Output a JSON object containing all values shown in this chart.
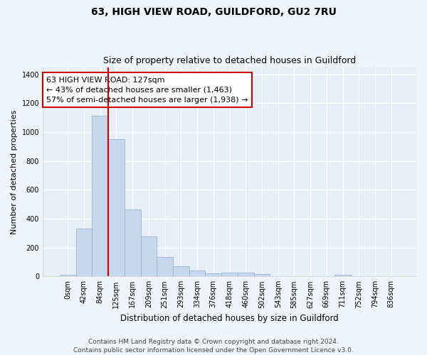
{
  "title": "63, HIGH VIEW ROAD, GUILDFORD, GU2 7RU",
  "subtitle": "Size of property relative to detached houses in Guildford",
  "xlabel": "Distribution of detached houses by size in Guildford",
  "ylabel": "Number of detached properties",
  "bar_color": "#c8d8ec",
  "bar_edge_color": "#9ab4d4",
  "background_color": "#e8eef8",
  "grid_color": "#ffffff",
  "fig_background": "#f0f4fb",
  "categories": [
    "0sqm",
    "42sqm",
    "84sqm",
    "125sqm",
    "167sqm",
    "209sqm",
    "251sqm",
    "293sqm",
    "334sqm",
    "376sqm",
    "418sqm",
    "460sqm",
    "502sqm",
    "543sqm",
    "585sqm",
    "627sqm",
    "669sqm",
    "711sqm",
    "752sqm",
    "794sqm",
    "836sqm"
  ],
  "values": [
    10,
    330,
    1115,
    950,
    465,
    278,
    133,
    70,
    42,
    22,
    25,
    25,
    18,
    0,
    0,
    0,
    0,
    13,
    0,
    0,
    0
  ],
  "annotation_text_line1": "63 HIGH VIEW ROAD: 127sqm",
  "annotation_text_line2": "← 43% of detached houses are smaller (1,463)",
  "annotation_text_line3": "57% of semi-detached houses are larger (1,938) →",
  "annotation_box_color": "#ffffff",
  "annotation_box_edge_color": "#cc0000",
  "vline_color": "#cc0000",
  "vline_x": 2.5,
  "ylim": [
    0,
    1450
  ],
  "yticks": [
    0,
    200,
    400,
    600,
    800,
    1000,
    1200,
    1400
  ],
  "footnote1": "Contains HM Land Registry data © Crown copyright and database right 2024.",
  "footnote2": "Contains public sector information licensed under the Open Government Licence v3.0.",
  "title_fontsize": 10,
  "subtitle_fontsize": 9,
  "xlabel_fontsize": 8.5,
  "ylabel_fontsize": 8,
  "tick_fontsize": 7,
  "annot_fontsize": 8,
  "footnote_fontsize": 6.5
}
